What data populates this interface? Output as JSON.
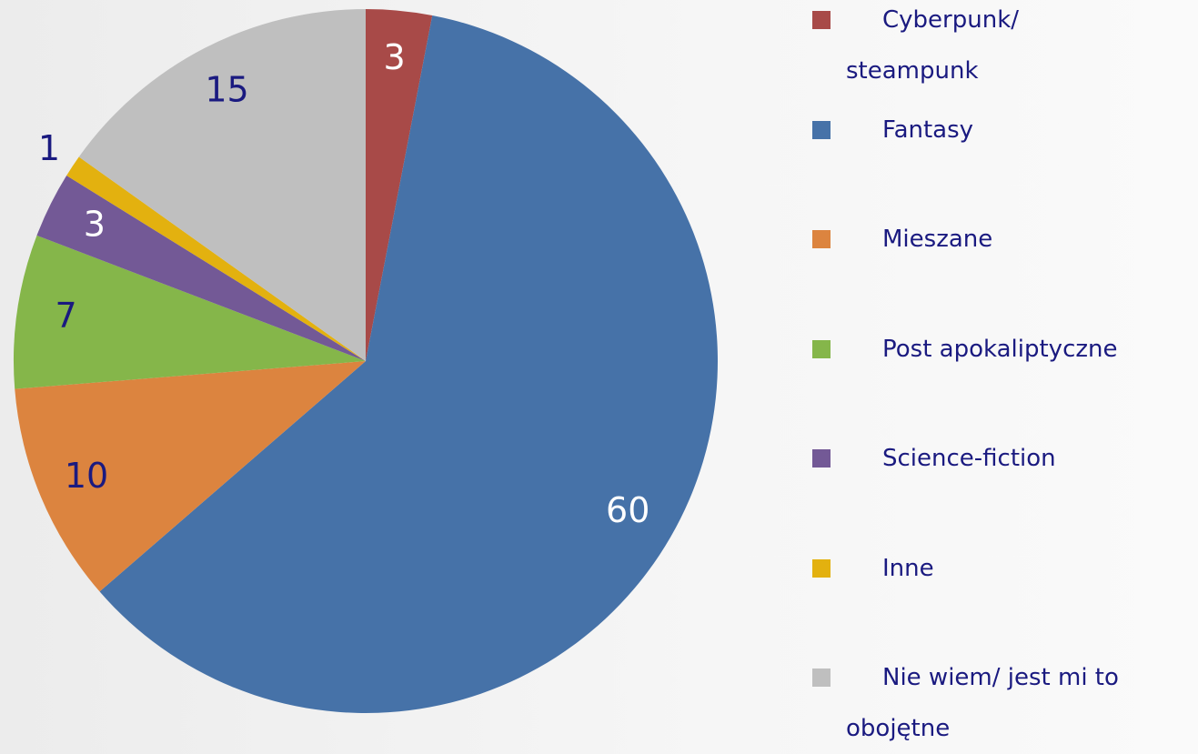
{
  "chart_data": {
    "type": "pie",
    "categories": [
      "Cyberpunk/ steampunk",
      "Fantasy",
      "Mieszane",
      "Post apokaliptyczne",
      "Science-fiction",
      "Inne",
      "Nie wiem/ jest mi to obojętne"
    ],
    "values": [
      3,
      60,
      10,
      7,
      3,
      1,
      15
    ],
    "colors": [
      "#a84a48",
      "#4672a8",
      "#dc843f",
      "#85b64a",
      "#735996",
      "#e3b10f",
      "#bfbfbf"
    ],
    "label_colors": [
      "#ffffff",
      "#ffffff",
      "#1a1a80",
      "#1a1a80",
      "#ffffff",
      "#1a1a80",
      "#1a1a80"
    ],
    "legend": "right"
  }
}
